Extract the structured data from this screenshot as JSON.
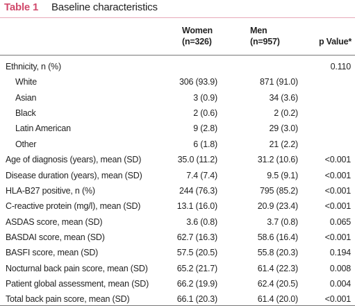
{
  "table": {
    "label": "Table 1",
    "title": "Baseline characteristics",
    "header": {
      "women": "Women",
      "women_n": "(n=326)",
      "men": "Men",
      "men_n": "(n=957)",
      "p": "p Value*"
    },
    "rows": [
      {
        "label": "Ethnicity, n (%)",
        "p": "0.110",
        "items": [
          {
            "label": "White",
            "women": "306 (93.9)",
            "men": "871 (91.0)"
          },
          {
            "label": "Asian",
            "women": "3 (0.9)",
            "men": "34 (3.6)"
          },
          {
            "label": "Black",
            "women": "2 (0.6)",
            "men": "2 (0.2)"
          },
          {
            "label": "Latin American",
            "women": "9 (2.8)",
            "men": "29 (3.0)"
          },
          {
            "label": "Other",
            "women": "6 (1.8)",
            "men": "21 (2.2)"
          }
        ]
      },
      {
        "label": "Age of diagnosis (years), mean (SD)",
        "women": "35.0 (11.2)",
        "men": "31.2 (10.6)",
        "p": "<0.001"
      },
      {
        "label": "Disease duration (years), mean (SD)",
        "women": "7.4 (7.4)",
        "men": "9.5 (9.1)",
        "p": "<0.001"
      },
      {
        "label": "HLA-B27 positive, n (%)",
        "women": "244 (76.3)",
        "men": "795 (85.2)",
        "p": "<0.001"
      },
      {
        "label": "C-reactive protein (mg/l), mean (SD)",
        "women": "13.1 (16.0)",
        "men": "20.9 (23.4)",
        "p": "<0.001"
      },
      {
        "label": "ASDAS score, mean (SD)",
        "women": "3.6 (0.8)",
        "men": "3.7 (0.8)",
        "p": "0.065"
      },
      {
        "label": "BASDAI score, mean (SD)",
        "women": "62.7 (16.3)",
        "men": "58.6 (16.4)",
        "p": "<0.001"
      },
      {
        "label": "BASFI score, mean (SD)",
        "women": "57.5 (20.5)",
        "men": "55.8 (20.3)",
        "p": "0.194"
      },
      {
        "label": "Nocturnal back pain score, mean (SD)",
        "women": "65.2 (21.7)",
        "men": "61.4 (22.3)",
        "p": "0.008"
      },
      {
        "label": "Patient global assessment, mean (SD)",
        "women": "66.2 (19.9)",
        "men": "62.4 (20.5)",
        "p": "0.004"
      },
      {
        "label": "Total back pain score, mean (SD)",
        "women": "66.1 (20.3)",
        "men": "61.4 (20.0)",
        "p": "<0.001"
      }
    ]
  }
}
